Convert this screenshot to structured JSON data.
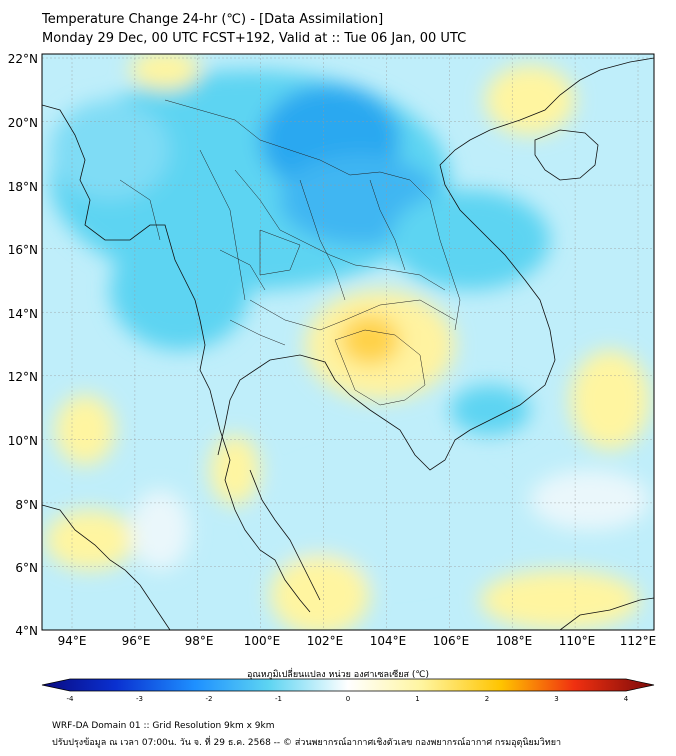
{
  "header": {
    "title_line1": "Temperature Change 24-hr (℃) - [Data Assimilation]",
    "title_line2": "Monday 29 Dec, 00 UTC FCST+192, Valid at :: Tue 06 Jan, 00 UTC"
  },
  "map": {
    "lat_labels": [
      "22°N",
      "20°N",
      "18°N",
      "16°N",
      "14°N",
      "12°N",
      "10°N",
      "8°N",
      "6°N",
      "4°N"
    ],
    "lon_labels": [
      "94°E",
      "96°E",
      "98°E",
      "100°E",
      "102°E",
      "104°E",
      "106°E",
      "108°E",
      "110°E",
      "112°E"
    ],
    "colors": {
      "cold": "#1e90ff",
      "cool": "#5dd4f2",
      "neutral": "#eaf7fb",
      "warm": "#fff5a0",
      "hot": "#ff9500",
      "ocean_fill": "#ffffff"
    }
  },
  "colorbar": {
    "label": "อุณหภูมิเปลี่ยนแปลง หน่วย องศาเซลเซียส (℃)",
    "ticks": [
      "-4",
      "-3",
      "-2",
      "-1",
      "0",
      "1",
      "2",
      "3",
      "4"
    ],
    "min": -4,
    "max": 4
  },
  "footer": {
    "line1": "WRF-DA Domain 01 :: Grid Resolution 9km x 9km",
    "line2": "ปรับปรุงข้อมูล ณ เวลา 07:00น. วัน จ. ที่ 29 ธ.ค. 2568 -- © ส่วนพยากรณ์อากาศเชิงตัวเลข กองพยากรณ์อากาศ กรมอุตุนิยมวิทยา"
  }
}
